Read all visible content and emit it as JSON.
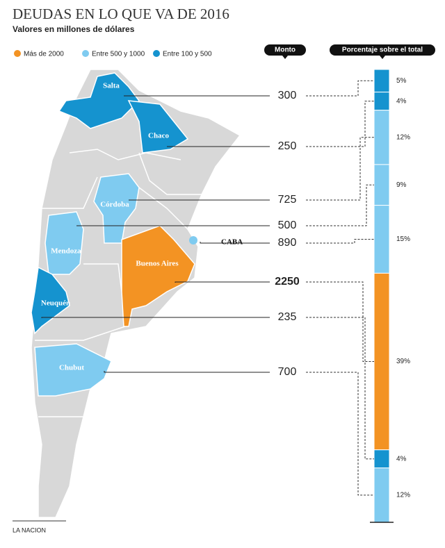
{
  "chart_data": {
    "type": "stacked-bar",
    "title": "DEUDAS EN LO QUE VA DE 2016",
    "subtitle": "Valores en millones de dólares",
    "legend": [
      {
        "name": "Más de 2000",
        "color": "#f39323"
      },
      {
        "name": "Entre 500 y 1000",
        "color": "#7fcbf0"
      },
      {
        "name": "Entre 100 y 500",
        "color": "#1593cf"
      }
    ],
    "categories": [
      "Salta",
      "Chaco",
      "Córdoba",
      "Mendoza",
      "CABA",
      "Buenos Aires",
      "Neuquén",
      "Chubut"
    ],
    "colors": [
      "#1593cf",
      "#1593cf",
      "#7fcbf0",
      "#7fcbf0",
      "#7fcbf0",
      "#f39323",
      "#1593cf",
      "#7fcbf0"
    ],
    "series": [
      {
        "name": "Monto",
        "values": [
          300,
          250,
          725,
          500,
          890,
          2250,
          235,
          700
        ]
      },
      {
        "name": "Porcentaje sobre el total",
        "values": [
          5,
          4,
          12,
          9,
          15,
          39,
          4,
          12
        ],
        "value_labels": [
          "5%",
          "4%",
          "12%",
          "9%",
          "15%",
          "39%",
          "4%",
          "12%"
        ]
      }
    ],
    "source": "LA NACION"
  }
}
